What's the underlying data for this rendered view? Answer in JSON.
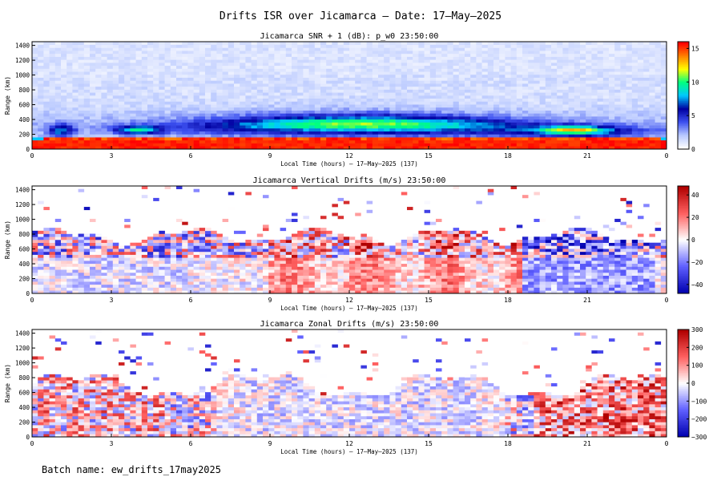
{
  "figure": {
    "title": "Drifts ISR over Jicamarca — Date: 17—May—2025",
    "batch": "Batch name: ew_drifts_17may2025"
  },
  "chart_data": [
    {
      "type": "heatmap",
      "title": "Jicamarca SNR + 1 (dB): p_w0 23:50:00",
      "xlabel": "Local Time (hours) — 17—May—2025 (137)",
      "ylabel": "Range (km)",
      "x_ticks": [
        "0",
        "3",
        "6",
        "9",
        "12",
        "15",
        "18",
        "21",
        "0"
      ],
      "x_range": [
        0,
        24
      ],
      "y_ticks": [
        "0",
        "200",
        "400",
        "600",
        "800",
        "1000",
        "1200",
        "1400"
      ],
      "y_range": [
        0,
        1450
      ],
      "colorbar": {
        "ticks": [
          "0",
          "5",
          "10",
          "15"
        ],
        "range": [
          0,
          16
        ],
        "colors": [
          "#ffffff",
          "#b8c8ff",
          "#3c50f0",
          "#0000a0",
          "#00c8ff",
          "#00ff80",
          "#ffff00",
          "#ff8000",
          "#ff0000"
        ]
      },
      "features": [
        "Strong echo (>15 dB) below ~150 km all day",
        "Moderate layer 200–400 km from ~06 to ~19 LT",
        "Enhanced patches near 250 km at ~01, ~04 and ~20.5 LT"
      ]
    },
    {
      "type": "heatmap",
      "title": "Jicamarca Vertical Drifts (m/s) 23:50:00",
      "xlabel": "Local Time (hours) — 17—May—2025 (137)",
      "ylabel": "Range (km)",
      "x_ticks": [
        "0",
        "3",
        "6",
        "9",
        "12",
        "15",
        "18",
        "21",
        "0"
      ],
      "x_range": [
        0,
        24
      ],
      "y_ticks": [
        "0",
        "200",
        "400",
        "600",
        "800",
        "1000",
        "1200",
        "1400"
      ],
      "y_range": [
        0,
        1450
      ],
      "colorbar": {
        "ticks": [
          "40",
          "20",
          "0",
          "−20",
          "−40"
        ],
        "range": [
          -48,
          48
        ],
        "colors": [
          "#0000b0",
          "#6060ff",
          "#ffffff",
          "#ff6060",
          "#b00000"
        ]
      },
      "features": [
        "Upward (red) drifts ~9–18 LT below ~600 km",
        "Downward (blue) drifts after ~19 LT",
        "Valid-data boundary near 700–900 km"
      ]
    },
    {
      "type": "heatmap",
      "title": "Jicamarca Zonal Drifts (m/s) 23:50:00",
      "xlabel": "Local Time (hours) — 17—May—2025 (137)",
      "ylabel": "Range (km)",
      "x_ticks": [
        "0",
        "3",
        "6",
        "9",
        "12",
        "15",
        "18",
        "21",
        "0"
      ],
      "x_range": [
        0,
        24
      ],
      "y_ticks": [
        "0",
        "200",
        "400",
        "600",
        "800",
        "1000",
        "1200",
        "1400"
      ],
      "y_range": [
        0,
        1450
      ],
      "colorbar": {
        "ticks": [
          "300",
          "200",
          "100",
          "0",
          "−100",
          "−200",
          "−300"
        ],
        "range": [
          -300,
          300
        ],
        "colors": [
          "#0000b0",
          "#6060ff",
          "#ffffff",
          "#ff6060",
          "#b00000"
        ]
      },
      "features": [
        "Mixed noisy drifts at night below ~800 km",
        "Weak drifts during daytime",
        "Eastward (red) drifts ~19–24 LT at 300–700 km"
      ]
    }
  ]
}
